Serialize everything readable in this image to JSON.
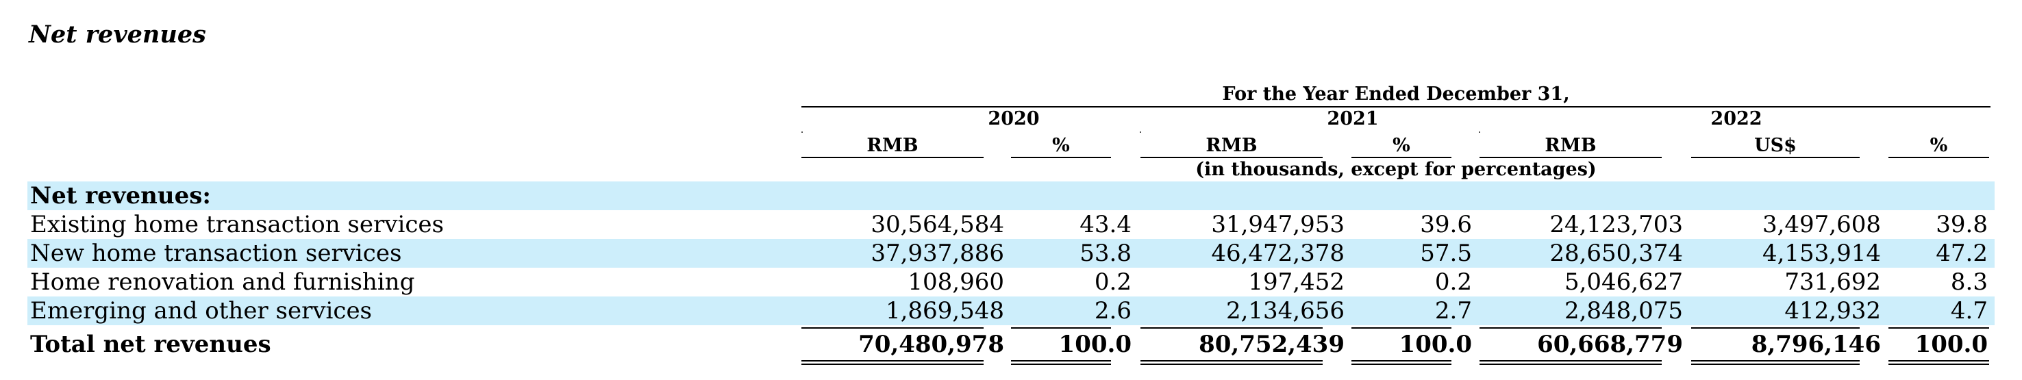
{
  "section_title": "Net revenues",
  "header": {
    "period": "For the Year Ended December 31,",
    "years": [
      "2020",
      "2021",
      "2022"
    ],
    "currency_rmb": "RMB",
    "currency_usd": "US$",
    "pct": "%",
    "unit_note": "(in thousands, except for percentages)"
  },
  "table": {
    "group_label": "Net revenues:",
    "rows": [
      {
        "label": "Existing home transaction services",
        "rmb2020": "30,564,584",
        "pct2020": "43.4",
        "rmb2021": "31,947,953",
        "pct2021": "39.6",
        "rmb2022": "24,123,703",
        "usd2022": "3,497,608",
        "pct2022": "39.8"
      },
      {
        "label": "New home transaction services",
        "rmb2020": "37,937,886",
        "pct2020": "53.8",
        "rmb2021": "46,472,378",
        "pct2021": "57.5",
        "rmb2022": "28,650,374",
        "usd2022": "4,153,914",
        "pct2022": "47.2"
      },
      {
        "label": "Home renovation and furnishing",
        "rmb2020": "108,960",
        "pct2020": "0.2",
        "rmb2021": "197,452",
        "pct2021": "0.2",
        "rmb2022": "5,046,627",
        "usd2022": "731,692",
        "pct2022": "8.3"
      },
      {
        "label": "Emerging and other services",
        "rmb2020": "1,869,548",
        "pct2020": "2.6",
        "rmb2021": "2,134,656",
        "pct2021": "2.7",
        "rmb2022": "2,848,075",
        "usd2022": "412,932",
        "pct2022": "4.7"
      }
    ],
    "total": {
      "label": "Total net revenues",
      "rmb2020": "70,480,978",
      "pct2020": "100.0",
      "rmb2021": "80,752,439",
      "pct2021": "100.0",
      "rmb2022": "60,668,779",
      "usd2022": "8,796,146",
      "pct2022": "100.0"
    }
  }
}
